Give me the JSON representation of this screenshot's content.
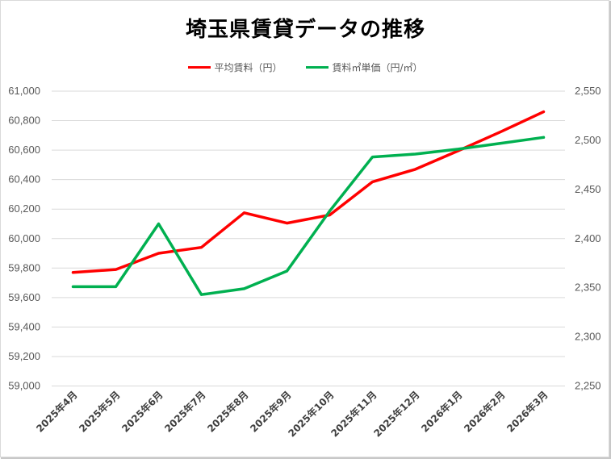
{
  "chart_data": {
    "type": "line",
    "title": "埼玉県賃貸データの推移",
    "xlabel": "",
    "ylabel": "",
    "y2label": "",
    "categories": [
      "2025年4月",
      "2025年5月",
      "2025年6月",
      "2025年7月",
      "2025年8月",
      "2025年9月",
      "2025年10月",
      "2025年11月",
      "2025年12月",
      "2026年1月",
      "2026年2月",
      "2026年3月"
    ],
    "series": [
      {
        "name": "平均賃料（円）",
        "axis": "left",
        "color": "#ff0000",
        "values": [
          59770,
          59790,
          59900,
          59940,
          60175,
          60105,
          60160,
          60385,
          60470,
          60595,
          60725,
          60860
        ]
      },
      {
        "name": "賃料㎡単価（円/㎡）",
        "axis": "right",
        "color": "#00b050",
        "values": [
          2351,
          2351,
          2415,
          2343,
          2349,
          2367,
          2428,
          2483,
          2486,
          2491,
          2497,
          2503
        ]
      }
    ],
    "ylim": [
      59000,
      61000
    ],
    "y2lim": [
      2250,
      2550
    ],
    "yticks": [
      "59,000",
      "59,200",
      "59,400",
      "59,600",
      "59,800",
      "60,000",
      "60,200",
      "60,400",
      "60,600",
      "60,800",
      "61,000"
    ],
    "y2ticks": [
      "2,250",
      "2,300",
      "2,350",
      "2,400",
      "2,450",
      "2,500",
      "2,550"
    ],
    "grid": true,
    "legend_position": "top"
  },
  "title": "埼玉県賃貸データの推移",
  "legend": [
    {
      "label": "平均賃料（円）",
      "color": "#ff0000"
    },
    {
      "label": "賃料㎡単価（円/㎡）",
      "color": "#00b050"
    }
  ]
}
